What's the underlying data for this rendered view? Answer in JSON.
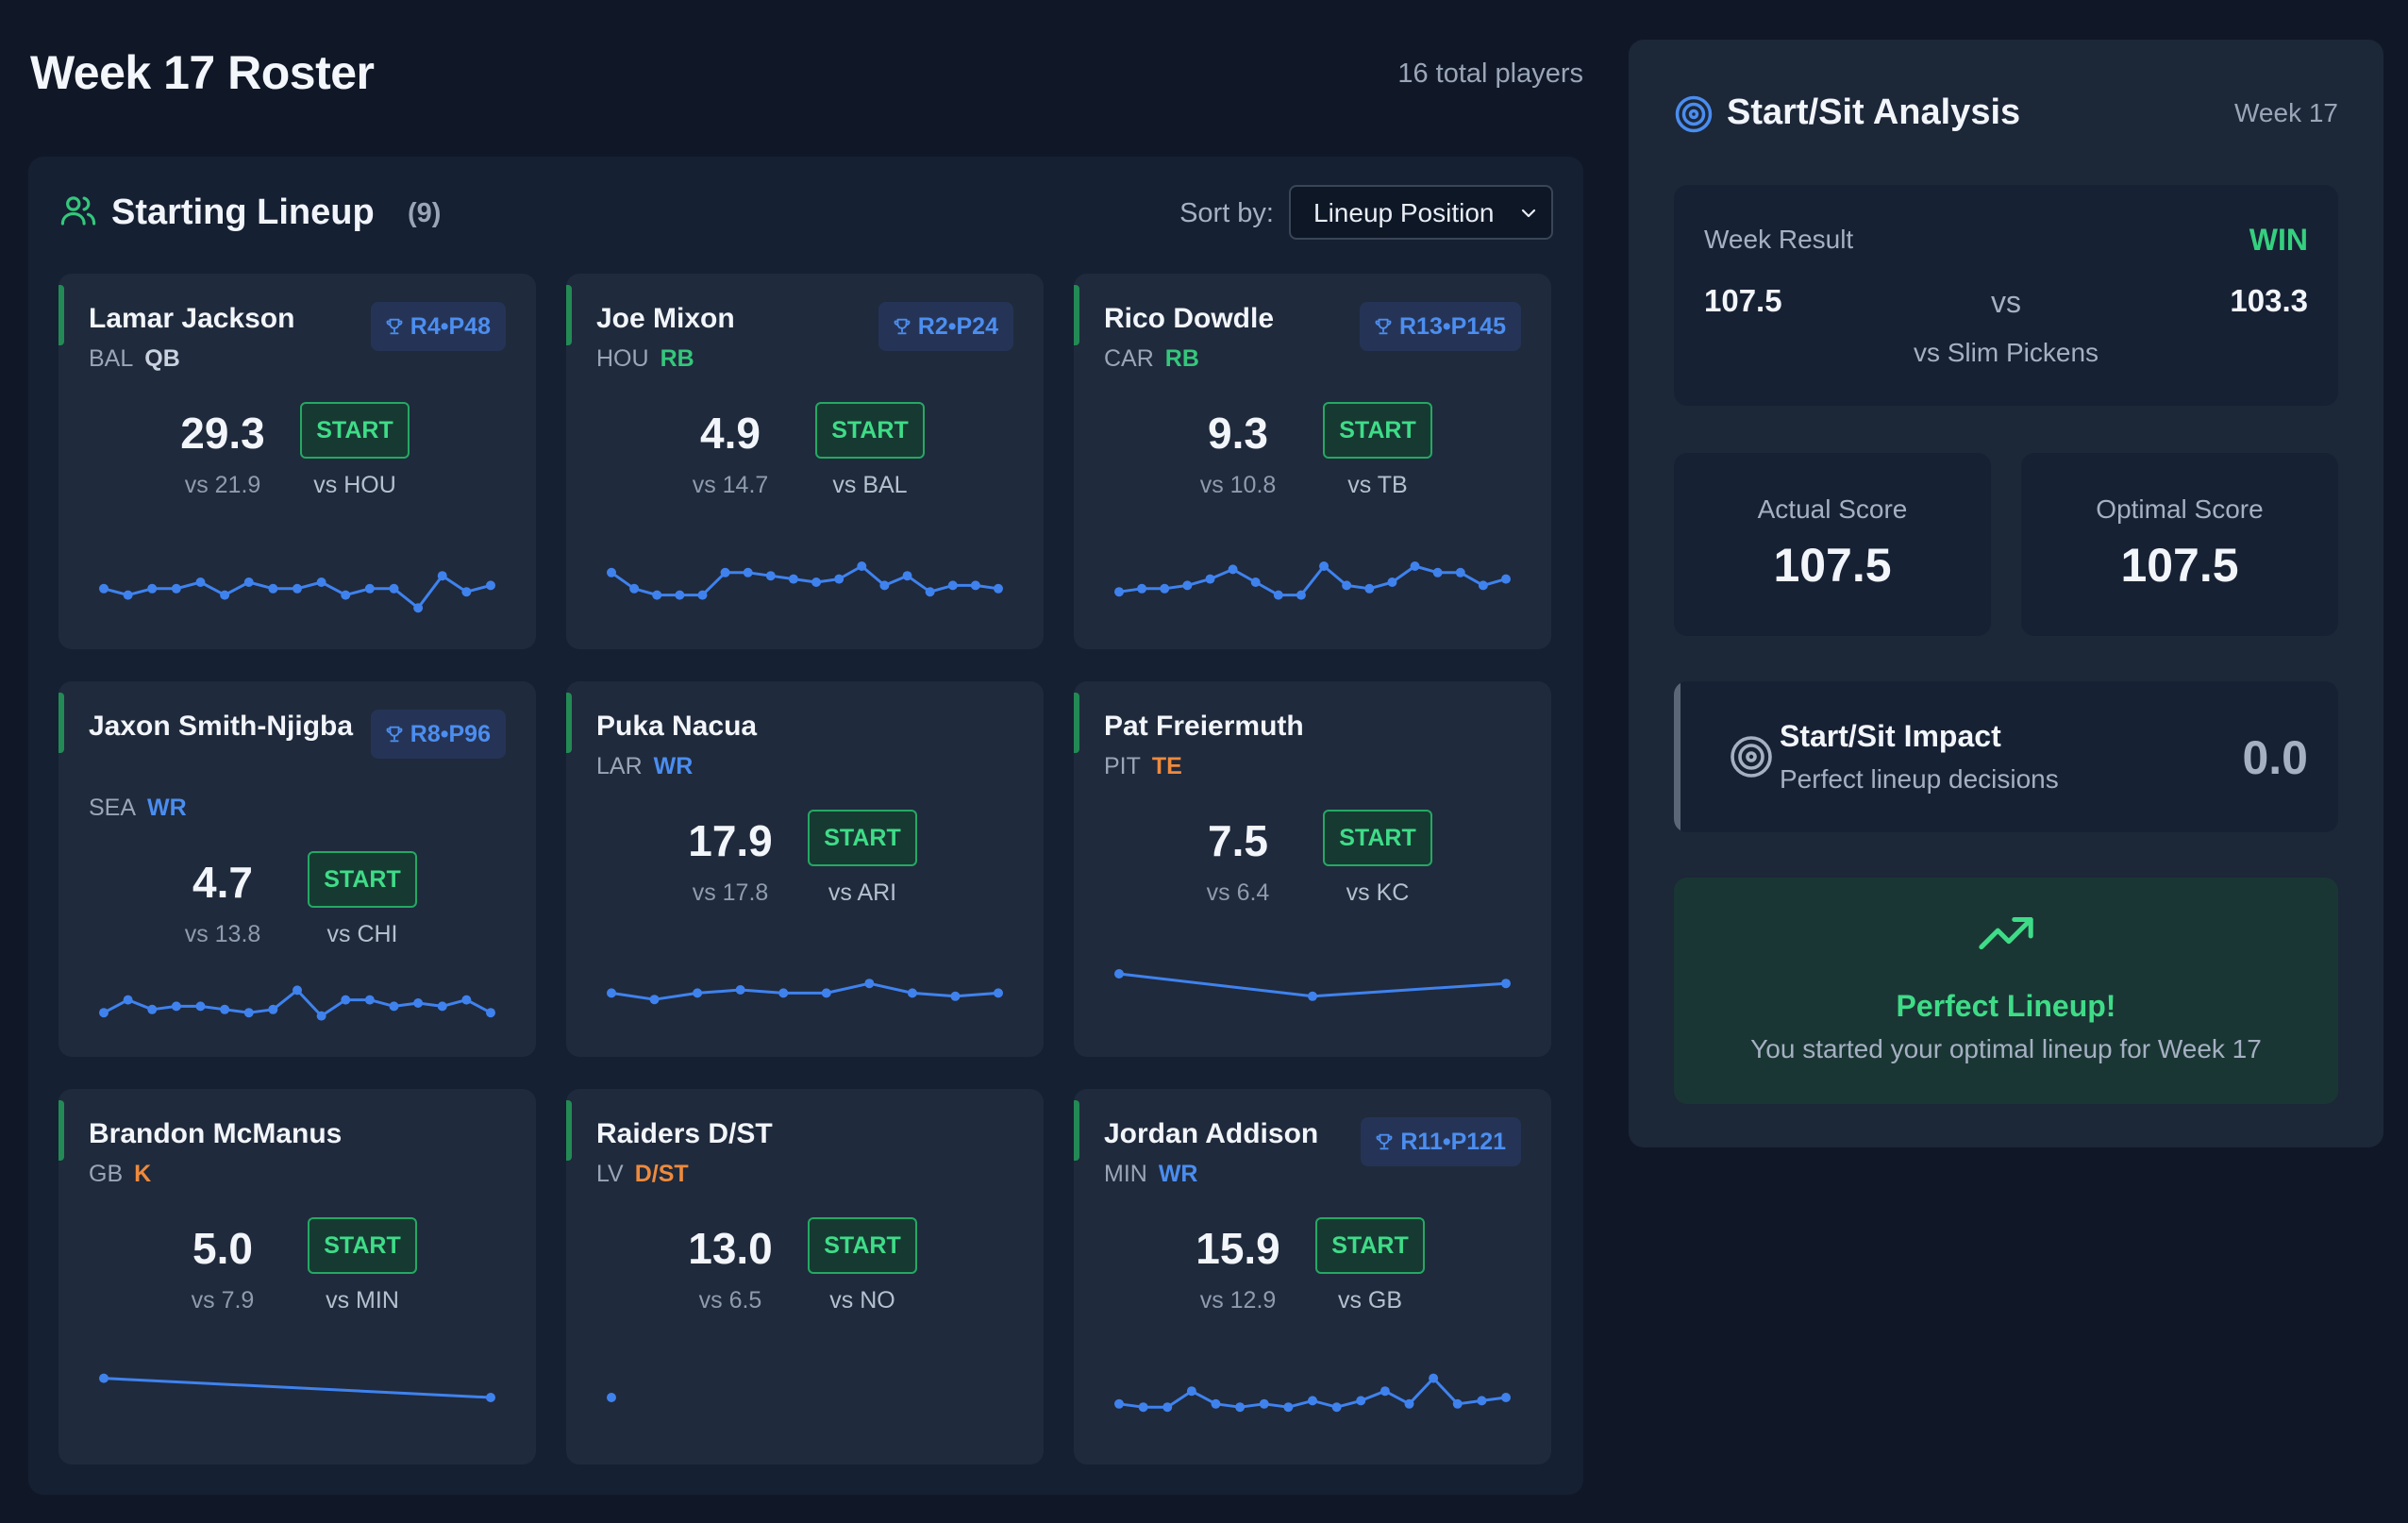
{
  "header": {
    "title": "Week 17 Roster",
    "total_players": "16 total players"
  },
  "lineup": {
    "title": "Starting Lineup",
    "count": "(9)",
    "sort_label": "Sort by:",
    "sort_value": "Lineup Position"
  },
  "players": [
    {
      "name": "Lamar Jackson",
      "team": "BAL",
      "pos": "QB",
      "pos_color": "qb",
      "rank": "R4•P48",
      "score": "29.3",
      "proj": "vs 21.9",
      "action": "START",
      "opp": "vs HOU",
      "trend": [
        3,
        1,
        3,
        3,
        5,
        1,
        5,
        3,
        3,
        5,
        1,
        3,
        3,
        -3,
        7,
        2,
        4
      ]
    },
    {
      "name": "Joe Mixon",
      "team": "HOU",
      "pos": "RB",
      "pos_color": "green",
      "rank": "R2•P24",
      "score": "4.9",
      "proj": "vs 14.7",
      "action": "START",
      "opp": "vs BAL",
      "trend": [
        8,
        3,
        1,
        1,
        1,
        8,
        8,
        7,
        6,
        5,
        6,
        10,
        4,
        7,
        2,
        4,
        4,
        3
      ]
    },
    {
      "name": "Rico Dowdle",
      "team": "CAR",
      "pos": "RB",
      "pos_color": "green",
      "rank": "R13•P145",
      "score": "9.3",
      "proj": "vs 10.8",
      "action": "START",
      "opp": "vs TB",
      "trend": [
        2,
        3,
        3,
        4,
        6,
        9,
        5,
        1,
        1,
        10,
        4,
        3,
        5,
        10,
        8,
        8,
        4,
        6
      ]
    },
    {
      "name": "Jaxon Smith-Njigba",
      "team": "SEA",
      "pos": "WR",
      "pos_color": "blue",
      "rank": "R8•P96",
      "score": "4.7",
      "proj": "vs 13.8",
      "action": "START",
      "opp": "vs CHI",
      "trend": [
        2,
        6,
        3,
        4,
        4,
        3,
        2,
        3,
        9,
        1,
        6,
        6,
        4,
        5,
        4,
        6,
        2
      ]
    },
    {
      "name": "Puka Nacua",
      "team": "LAR",
      "pos": "WR",
      "pos_color": "blue",
      "rank": "",
      "score": "17.9",
      "proj": "vs 17.8",
      "action": "START",
      "opp": "vs ARI",
      "trend": [
        4,
        2,
        4,
        5,
        4,
        4,
        7,
        4,
        3,
        4
      ]
    },
    {
      "name": "Pat Freiermuth",
      "team": "PIT",
      "pos": "TE",
      "pos_color": "orange",
      "rank": "",
      "score": "7.5",
      "proj": "vs 6.4",
      "action": "START",
      "opp": "vs KC",
      "trend": [
        10,
        3,
        7
      ]
    },
    {
      "name": "Brandon McManus",
      "team": "GB",
      "pos": "K",
      "pos_color": "orange",
      "rank": "",
      "score": "5.0",
      "proj": "vs 7.9",
      "action": "START",
      "opp": "vs MIN",
      "trend": [
        11,
        5
      ]
    },
    {
      "name": "Raiders D/ST",
      "team": "LV",
      "pos": "D/ST",
      "pos_color": "orange",
      "rank": "",
      "score": "13.0",
      "proj": "vs 6.5",
      "action": "START",
      "opp": "vs NO",
      "trend": [
        5
      ]
    },
    {
      "name": "Jordan Addison",
      "team": "MIN",
      "pos": "WR",
      "pos_color": "blue",
      "rank": "R11•P121",
      "score": "15.9",
      "proj": "vs 12.9",
      "action": "START",
      "opp": "vs GB",
      "trend": [
        3,
        2,
        2,
        7,
        3,
        2,
        3,
        2,
        4,
        2,
        4,
        7,
        3,
        11,
        3,
        4,
        5
      ]
    }
  ],
  "analysis": {
    "title": "Start/Sit Analysis",
    "week": "Week 17",
    "week_result_label": "Week Result",
    "week_result": "WIN",
    "my_score": "107.5",
    "vs": "vs",
    "opp_score": "103.3",
    "opp_name": "vs Slim Pickens",
    "actual_label": "Actual Score",
    "actual_value": "107.5",
    "optimal_label": "Optimal Score",
    "optimal_value": "107.5",
    "impact_title": "Start/Sit Impact",
    "impact_sub": "Perfect lineup decisions",
    "impact_value": "0.0",
    "perfect_title": "Perfect Lineup!",
    "perfect_sub": "You started your optimal lineup for Week 17"
  },
  "colors": {
    "accent_green": "#3fdc88",
    "accent_blue": "#4a8df0",
    "accent_orange": "#ee8a3d",
    "background": "#101827"
  }
}
